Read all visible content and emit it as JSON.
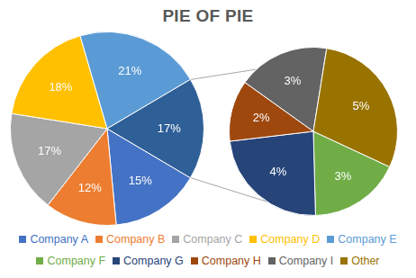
{
  "chart_data": [
    {
      "type": "pie",
      "title": "PIE OF PIE",
      "categories": [
        "Company A",
        "Company B",
        "Company C",
        "Company D",
        "Company E",
        null
      ],
      "values": [
        15,
        12,
        17,
        18,
        21,
        17
      ],
      "value_labels": [
        "15%",
        "12%",
        "17%",
        "18%",
        "21%",
        "17%"
      ],
      "colors": [
        "#4472c4",
        "#ed7d31",
        "#a5a5a5",
        "#ffc000",
        "#5b9bd5",
        "#2f5f97"
      ],
      "data_labels": true,
      "legend": "bottom"
    },
    {
      "type": "pie",
      "categories": [
        "Company F",
        "Company G",
        "Company H",
        "Company I",
        "Other"
      ],
      "values": [
        3,
        4,
        2,
        3,
        5
      ],
      "value_labels": [
        "3%",
        "4%",
        "2%",
        "3%",
        "5%"
      ],
      "colors": [
        "#70ad47",
        "#264478",
        "#9e480e",
        "#636363",
        "#997300"
      ],
      "data_labels": true,
      "legend": "bottom"
    }
  ]
}
